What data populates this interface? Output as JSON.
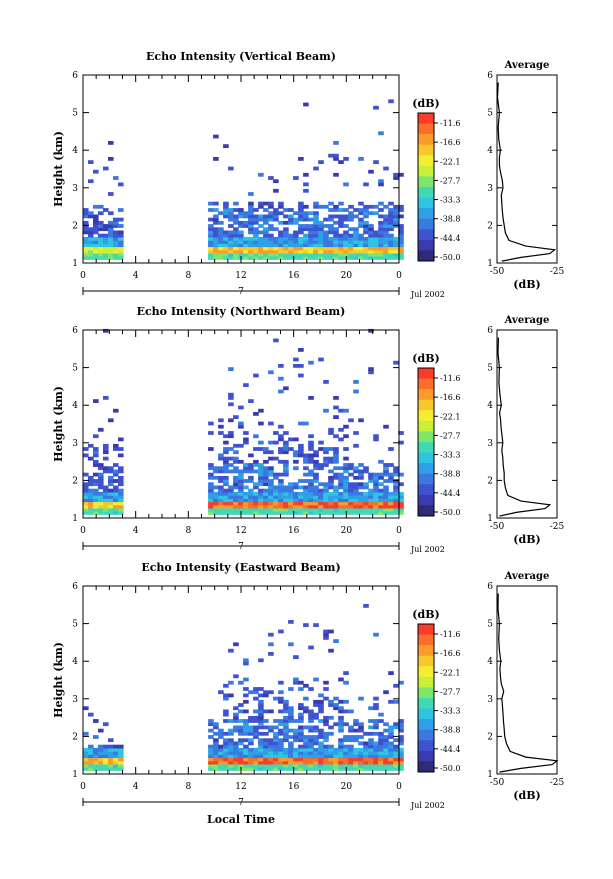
{
  "x_axis": {
    "title": "Local Time",
    "ticks": [
      "0",
      "4",
      "8",
      "12",
      "16",
      "20",
      "0"
    ],
    "day_label": "7",
    "date_label": "Jul 2002"
  },
  "y_axis": {
    "title": "Height (km)",
    "ticks": [
      "1",
      "2",
      "3",
      "4",
      "5",
      "6"
    ]
  },
  "colorbar": {
    "unit": "(dB)",
    "tick_labels": [
      "-11.6",
      "-16.6",
      "-22.1",
      "-27.7",
      "-33.3",
      "-38.8",
      "-44.4",
      "-50.0"
    ],
    "colors": [
      "#fa3c2a",
      "#f86e2a",
      "#fb9b2b",
      "#f7c72e",
      "#f4ee30",
      "#c8ef3a",
      "#7fe66c",
      "#41d9b3",
      "#2fc4e2",
      "#2fa0e6",
      "#3a7ae0",
      "#3f53d0",
      "#3b3bb0",
      "#2d2c78"
    ]
  },
  "profile": {
    "title": "Average",
    "xlabel": "(dB)"
  },
  "chart_data": [
    {
      "type": "heatmap",
      "title": "Echo Intensity (Vertical Beam)",
      "xlabel": "",
      "ylabel": "Height (km)",
      "xlim": [
        0,
        24
      ],
      "ylim": [
        1,
        6
      ],
      "zlim": [
        -50.0,
        -11.6
      ],
      "data_gap_hours": [
        3,
        9.5
      ],
      "profile": {
        "xlim": [
          -50,
          -25
        ],
        "xticks": [
          "-50",
          "-25"
        ],
        "height": [
          1.05,
          1.15,
          1.25,
          1.35,
          1.45,
          1.6,
          1.8,
          2.0,
          2.2,
          2.4,
          2.6,
          2.8,
          3.0,
          3.2,
          3.4,
          3.6,
          3.8,
          4.0,
          4.3,
          4.6,
          5.0,
          5.4,
          5.8
        ],
        "value": [
          -48,
          -40,
          -28,
          -26,
          -38,
          -45,
          -46.5,
          -47,
          -47.5,
          -47.8,
          -48,
          -48.2,
          -47.5,
          -47.8,
          -48.5,
          -49,
          -49,
          -48.6,
          -49.3,
          -49.5,
          -49,
          -49.8,
          -49.5
        ]
      }
    },
    {
      "type": "heatmap",
      "title": "Echo Intensity (Northward Beam)",
      "xlabel": "",
      "ylabel": "Height (km)",
      "xlim": [
        0,
        24
      ],
      "ylim": [
        1,
        6
      ],
      "zlim": [
        -50.0,
        -11.6
      ],
      "data_gap_hours": [
        3,
        9.5
      ],
      "profile": {
        "xlim": [
          -50,
          -25
        ],
        "xticks": [
          "-50",
          "-25"
        ],
        "height": [
          1.05,
          1.15,
          1.25,
          1.35,
          1.45,
          1.6,
          1.8,
          2.0,
          2.2,
          2.4,
          2.6,
          2.8,
          3.0,
          3.2,
          3.4,
          3.6,
          3.8,
          4.0,
          4.3,
          4.6,
          5.0,
          5.4,
          5.8
        ],
        "value": [
          -49,
          -42,
          -30,
          -28,
          -40,
          -45.5,
          -46.5,
          -47,
          -47,
          -47.4,
          -47.6,
          -48,
          -47.6,
          -47.9,
          -48.3,
          -48.5,
          -48.9,
          -48.2,
          -48.8,
          -49.2,
          -49,
          -49.6,
          -49.4
        ]
      }
    },
    {
      "type": "heatmap",
      "title": "Echo Intensity (Eastward Beam)",
      "xlabel": "Local Time",
      "ylabel": "Height (km)",
      "xlim": [
        0,
        24
      ],
      "ylim": [
        1,
        6
      ],
      "zlim": [
        -50.0,
        -11.6
      ],
      "data_gap_hours": [
        3,
        9.5
      ],
      "profile": {
        "xlim": [
          -50,
          -25
        ],
        "xticks": [
          "-50",
          "-25"
        ],
        "height": [
          1.05,
          1.15,
          1.25,
          1.35,
          1.45,
          1.6,
          1.8,
          2.0,
          2.2,
          2.4,
          2.6,
          2.8,
          3.0,
          3.2,
          3.4,
          3.6,
          3.8,
          4.0,
          4.3,
          4.6,
          5.0,
          5.4,
          5.8
        ],
        "value": [
          -49,
          -40,
          -27,
          -25,
          -38,
          -44.5,
          -46,
          -46.8,
          -47,
          -47.3,
          -47.5,
          -47.7,
          -48,
          -47.2,
          -48.2,
          -48.6,
          -48.8,
          -48.4,
          -49,
          -49.3,
          -49,
          -49.6,
          -49.5
        ]
      }
    }
  ]
}
